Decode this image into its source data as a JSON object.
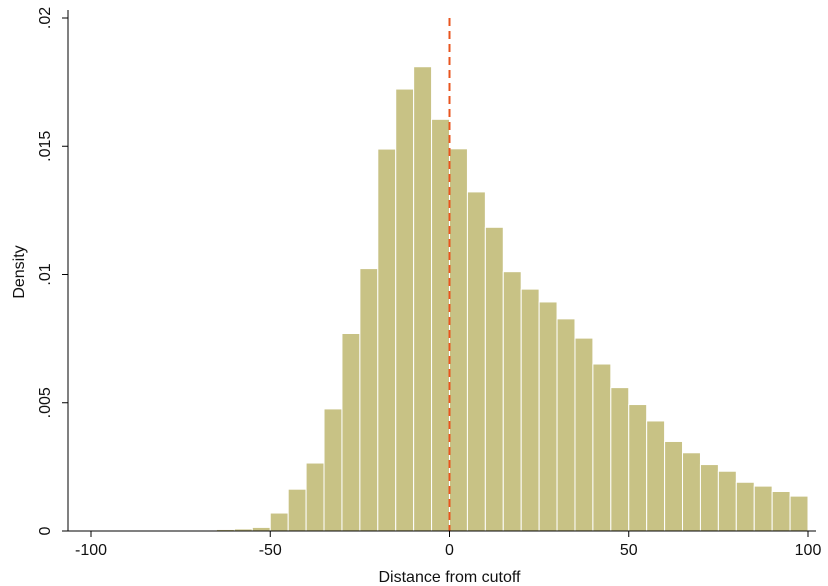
{
  "chart_data": {
    "type": "bar",
    "subtype": "histogram",
    "title": "",
    "xlabel": "Distance from cutoff",
    "ylabel": "Density",
    "xlim": [
      -100,
      100
    ],
    "ylim": [
      0,
      0.02
    ],
    "grid": false,
    "legend": "none",
    "bin_width": 5,
    "bin_starts": [
      -100,
      -95,
      -90,
      -85,
      -80,
      -75,
      -70,
      -65,
      -60,
      -55,
      -50,
      -45,
      -40,
      -35,
      -30,
      -25,
      -20,
      -15,
      -10,
      -5,
      0,
      5,
      10,
      15,
      20,
      25,
      30,
      35,
      40,
      45,
      50,
      55,
      60,
      65,
      70,
      75,
      80,
      85,
      90,
      95
    ],
    "values": [
      1e-05,
      1e-05,
      1e-05,
      1e-05,
      1e-05,
      1e-05,
      3e-05,
      6e-05,
      8e-05,
      0.00014,
      0.0007,
      0.00163,
      0.00265,
      0.00476,
      0.0077,
      0.01023,
      0.01489,
      0.01723,
      0.0181,
      0.01605,
      0.0149,
      0.01322,
      0.01184,
      0.01011,
      0.00943,
      0.00893,
      0.00827,
      0.00752,
      0.00651,
      0.00559,
      0.00493,
      0.00429,
      0.00349,
      0.00305,
      0.00259,
      0.00233,
      0.0019,
      0.00175,
      0.00154,
      0.00136
    ],
    "cutoff_line": {
      "x": 0,
      "style": "dashed",
      "color": "#e8551f"
    },
    "x_ticks": [
      -100,
      -50,
      0,
      50,
      100
    ],
    "x_tick_labels": [
      "-100",
      "-50",
      "0",
      "50",
      "100"
    ],
    "y_ticks": [
      0,
      0.005,
      0.01,
      0.015,
      0.02
    ],
    "y_tick_labels": [
      "0",
      ".005",
      ".01",
      ".015",
      ".02"
    ],
    "bar_fill": "#c8c285",
    "bar_stroke": "#ffffff"
  }
}
